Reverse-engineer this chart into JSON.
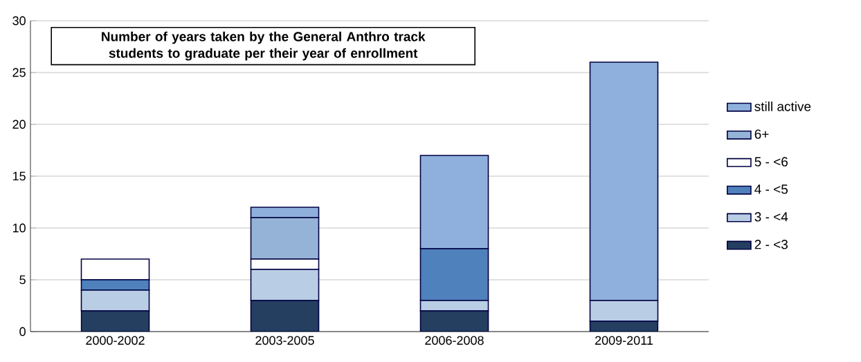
{
  "chart_data": {
    "type": "bar",
    "stacked": true,
    "title": "Number of years taken by the General Anthro track students to graduate per their year of enrollment",
    "categories": [
      "2000-2002",
      "2003-2005",
      "2006-2008",
      "2009-2011"
    ],
    "series": [
      {
        "name": "2 - <3",
        "color": "#243f60",
        "values": [
          2,
          3,
          2,
          1
        ]
      },
      {
        "name": "3 - <4",
        "color": "#b9cde5",
        "values": [
          2,
          3,
          1,
          2
        ]
      },
      {
        "name": "4 - <5",
        "color": "#4f81bd",
        "values": [
          1,
          0,
          5,
          0
        ]
      },
      {
        "name": "5 - <6",
        "color": "#ffffff",
        "values": [
          2,
          1,
          0,
          0
        ]
      },
      {
        "name": "6+",
        "color": "#95b3d7",
        "values": [
          0,
          4,
          0,
          0
        ]
      },
      {
        "name": "still active",
        "color": "#8fb0dc",
        "values": [
          0,
          1,
          9,
          23
        ]
      }
    ],
    "ylim": [
      0,
      30
    ],
    "yticks": [
      0,
      5,
      10,
      15,
      20,
      25,
      30
    ],
    "grid": "y",
    "legend": "right"
  }
}
